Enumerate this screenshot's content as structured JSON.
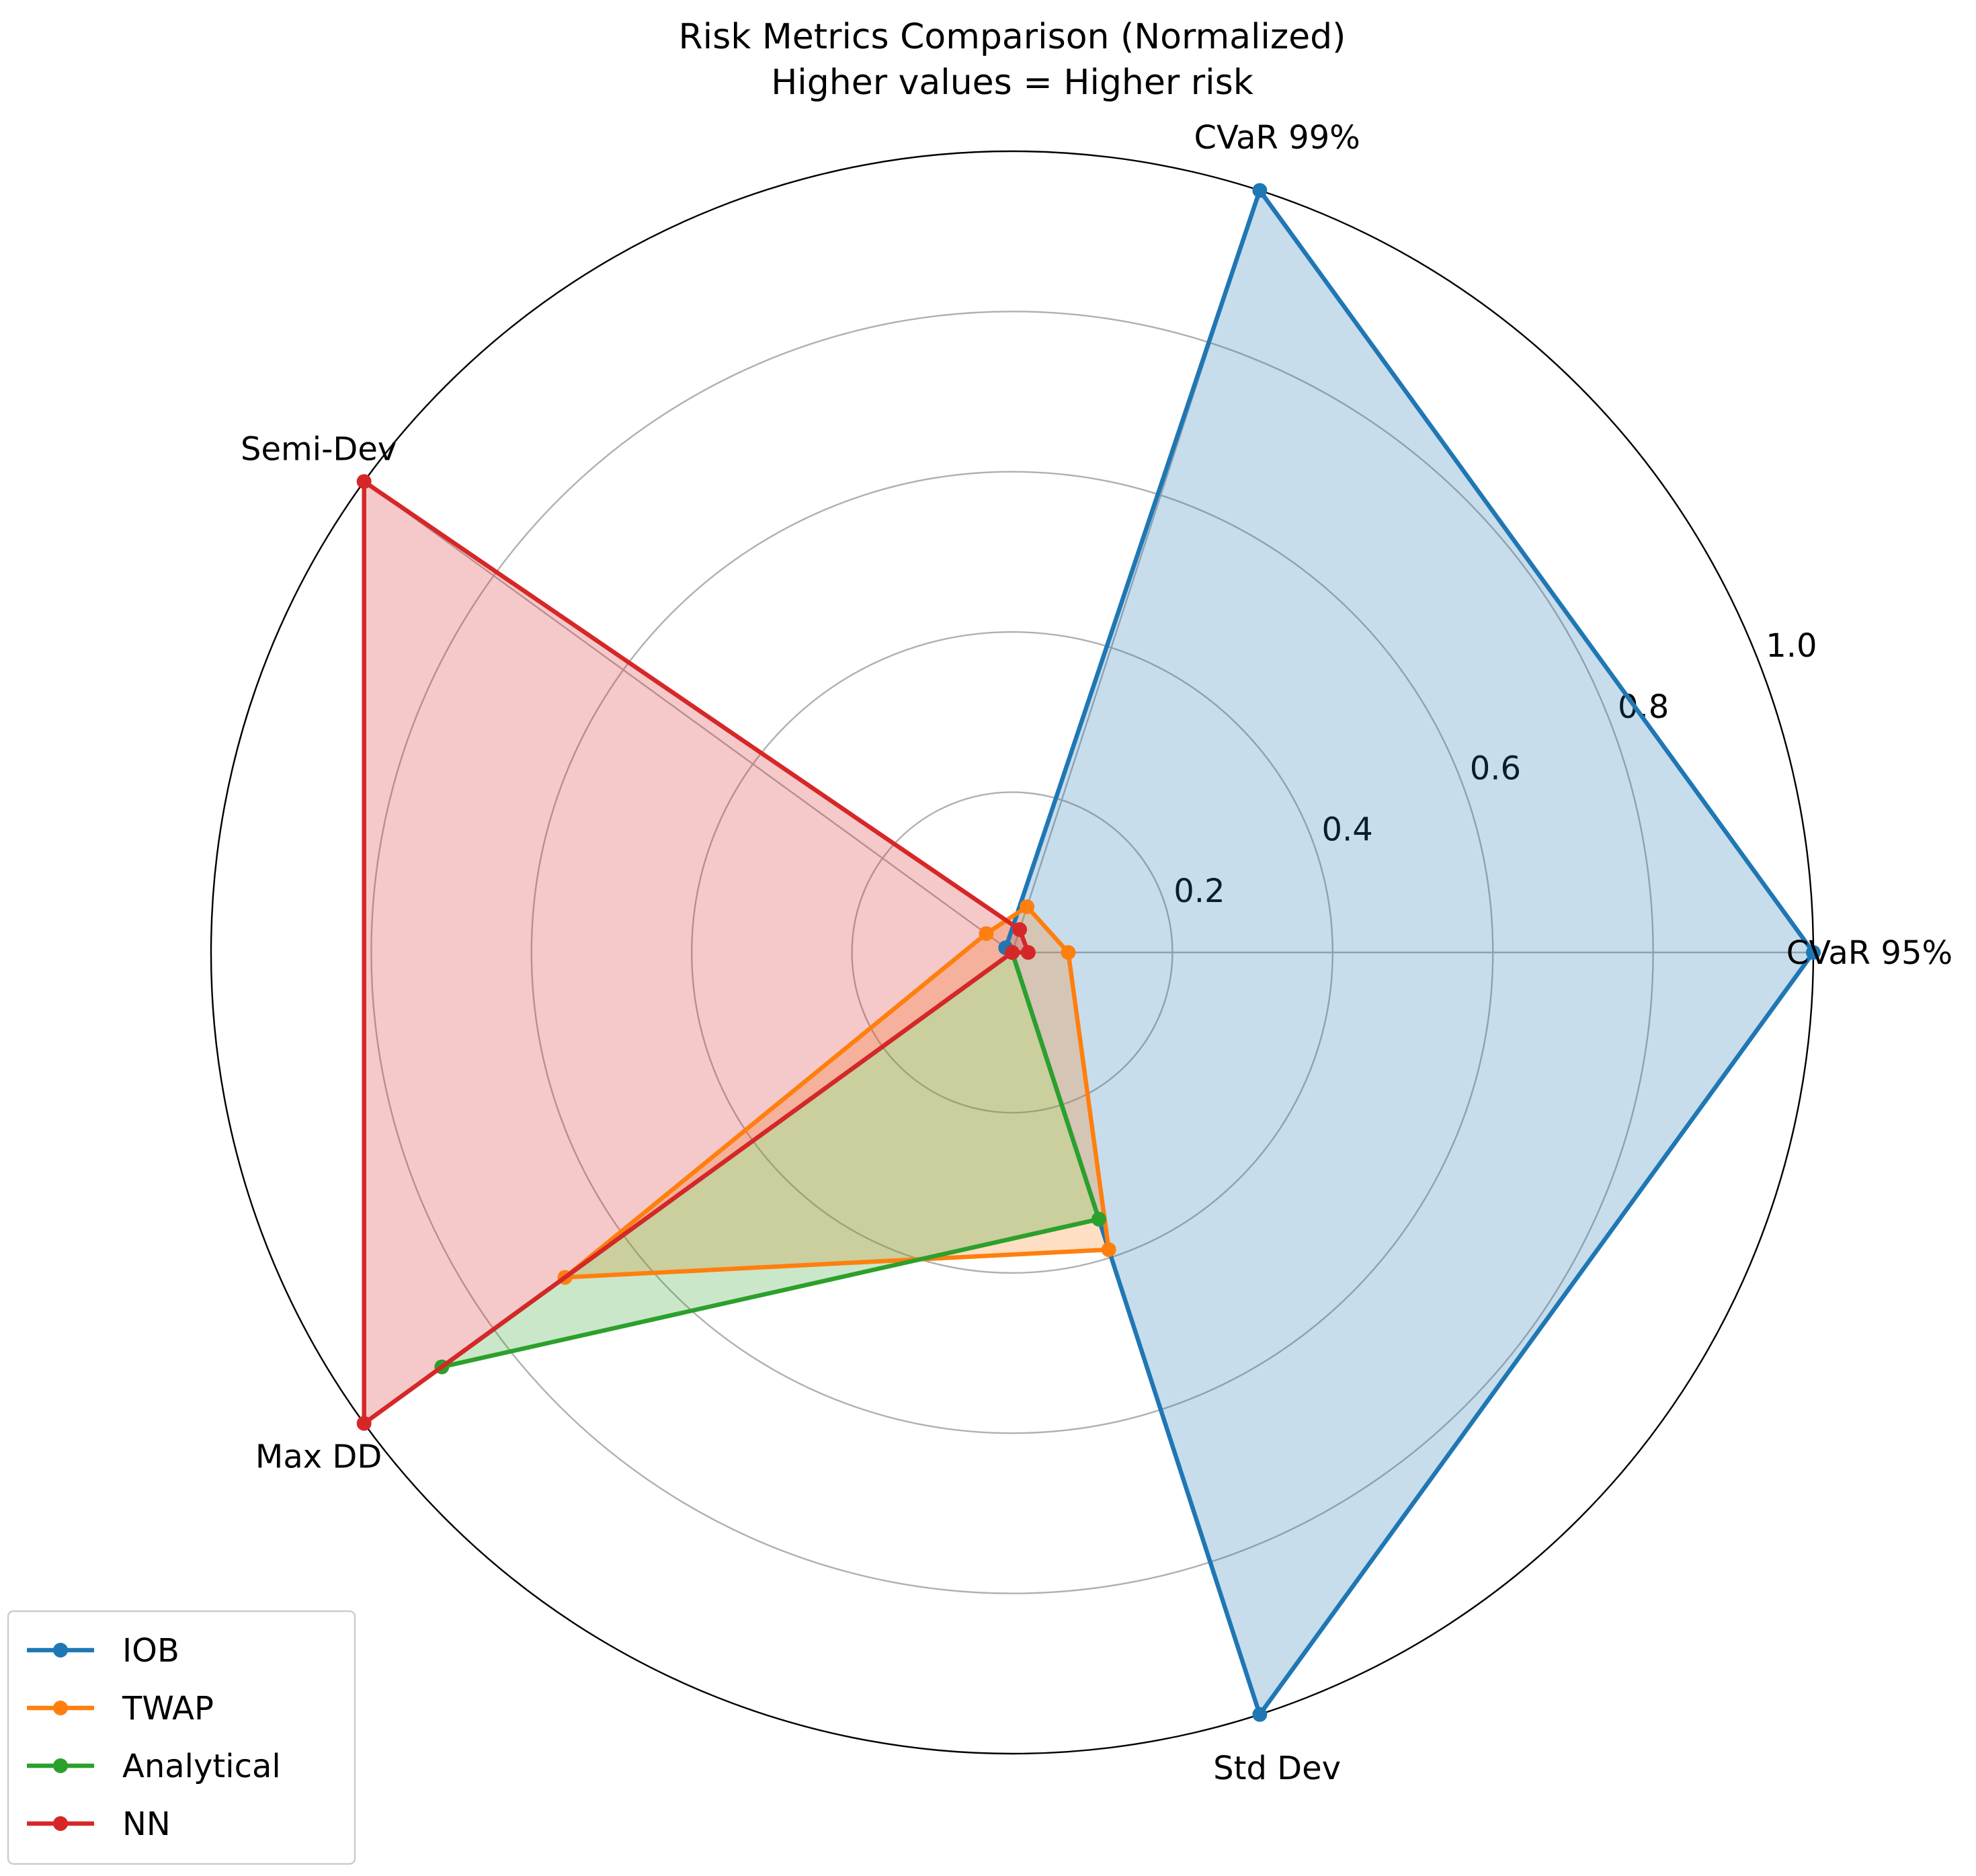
{
  "chart_data": {
    "type": "radar",
    "title": "Risk Metrics Comparison (Normalized)",
    "subtitle": "Higher values = Higher risk",
    "axes": [
      "CVaR 95%",
      "CVaR 99%",
      "Semi-Dev",
      "Max DD",
      "Std Dev"
    ],
    "rlim": [
      0,
      1
    ],
    "radial_ticks": [
      0.2,
      0.4,
      0.6,
      0.8,
      1.0
    ],
    "radial_tick_labels": [
      "0.2",
      "0.4",
      "0.6",
      "0.8",
      "1.0"
    ],
    "grid": true,
    "legend_position": "bottom-left",
    "series": [
      {
        "name": "IOB",
        "color": "#1f77b4",
        "values": [
          1.0,
          1.0,
          0.01,
          0.0,
          1.0
        ],
        "fill": true
      },
      {
        "name": "TWAP",
        "color": "#ff7f0e",
        "values": [
          0.07,
          0.06,
          0.04,
          0.69,
          0.39
        ],
        "fill": true
      },
      {
        "name": "Analytical",
        "color": "#2ca02c",
        "values": [
          0.0,
          0.0,
          0.0,
          0.88,
          0.35
        ],
        "fill": true
      },
      {
        "name": "NN",
        "color": "#d62728",
        "values": [
          0.02,
          0.03,
          1.0,
          1.0,
          0.0
        ],
        "fill": true
      }
    ]
  }
}
